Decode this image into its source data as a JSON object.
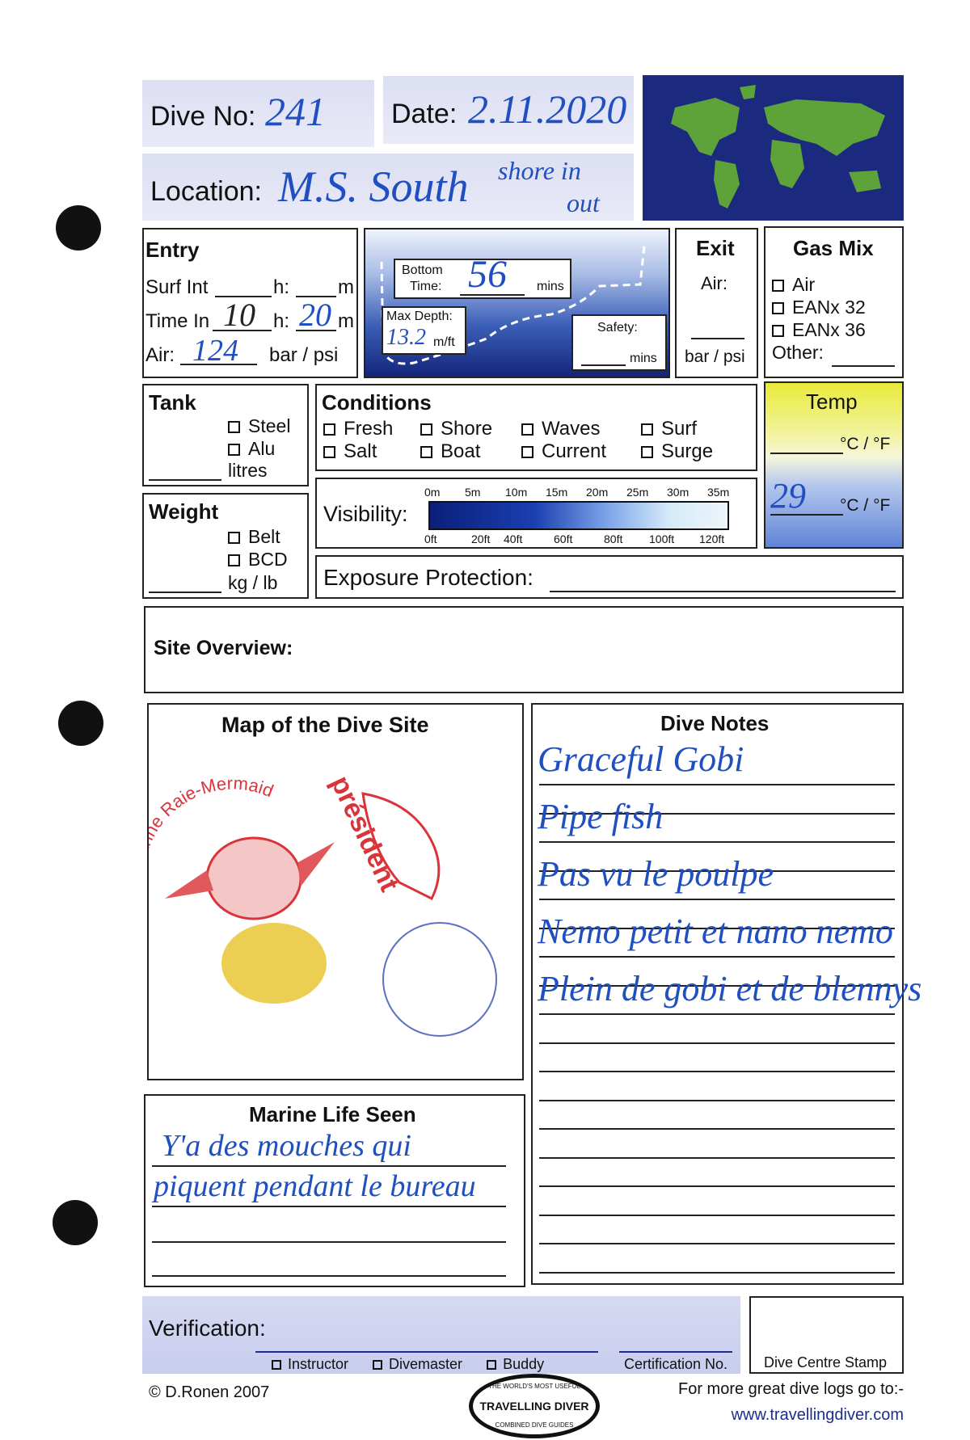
{
  "header": {
    "dive_no_label": "Dive No:",
    "dive_no": "241",
    "date_label": "Date:",
    "date": "2.11.2020",
    "location_label": "Location:",
    "location": "M.S. South",
    "location_note_1": "shore in",
    "location_note_2": "out"
  },
  "entry": {
    "title": "Entry",
    "surf_int": "Surf Int",
    "h": "h:",
    "m": "m",
    "time_in": "Time In",
    "time_in_h": "10",
    "time_in_m": "20",
    "air": "Air:",
    "air_value": "124",
    "unit": "bar / psi"
  },
  "profile": {
    "bottom": "Bottom",
    "time": "Time:",
    "bottom_time": "56",
    "mins": "mins",
    "max_depth": "Max Depth:",
    "max_depth_value": "13.2",
    "mft": "m/ft",
    "safety": "Safety:"
  },
  "exit": {
    "title": "Exit",
    "air": "Air:",
    "unit": "bar / psi"
  },
  "gas": {
    "title": "Gas Mix",
    "options": [
      "Air",
      "EANx 32",
      "EANx 36"
    ],
    "other": "Other:"
  },
  "tank": {
    "title": "Tank",
    "options": [
      "Steel",
      "Alu"
    ],
    "unit": "litres"
  },
  "conditions": {
    "title": "Conditions",
    "row1": [
      "Fresh",
      "Shore",
      "Waves",
      "Surf"
    ],
    "row2": [
      "Salt",
      "Boat",
      "Current",
      "Surge"
    ]
  },
  "temp": {
    "title": "Temp",
    "unit": "°C / °F",
    "water": "29"
  },
  "visibility": {
    "label": "Visibility:",
    "m_ticks": [
      "0m",
      "5m",
      "10m",
      "15m",
      "20m",
      "25m",
      "30m",
      "35m"
    ],
    "ft_ticks": [
      "0ft",
      "20ft",
      "40ft",
      "60ft",
      "80ft",
      "100ft",
      "120ft"
    ]
  },
  "weight": {
    "title": "Weight",
    "options": [
      "Belt",
      "BCD"
    ],
    "unit": "kg / lb"
  },
  "exposure": {
    "label": "Exposure Protection:"
  },
  "site": {
    "label": "Site Overview:"
  },
  "map": {
    "title": "Map of the Dive Site",
    "stamp_1": "Anne Raie-Mermaid",
    "stamp_2": "président"
  },
  "notes": {
    "title": "Dive Notes",
    "lines": [
      "Graceful Gobi",
      "Pipe fish",
      "Pas vu le poulpe",
      "Nemo petit et nano nemo",
      "Plein de gobi et de blennys"
    ]
  },
  "marine": {
    "title": "Marine Life Seen",
    "lines": [
      "Y'a des mouches qui",
      "piquent pendant le bureau"
    ]
  },
  "verification": {
    "label": "Verification:",
    "options": [
      "Instructor",
      "Divemaster",
      "Buddy"
    ],
    "cert": "Certification No.",
    "stamp": "Dive Centre Stamp"
  },
  "footer": {
    "copyright": "© D.Ronen 2007",
    "logo": "TRAVELLING DIVER",
    "logo_top": "THE WORLD'S MOST USEFUL",
    "logo_bottom": "COMBINED DIVE GUIDES",
    "more": "For more great dive logs go to:-",
    "url": "www.travellingdiver.com"
  },
  "colors": {
    "ink": "#1f4fc0",
    "form_blue": "#1b2f8a",
    "stamp_red": "#d9343a"
  }
}
